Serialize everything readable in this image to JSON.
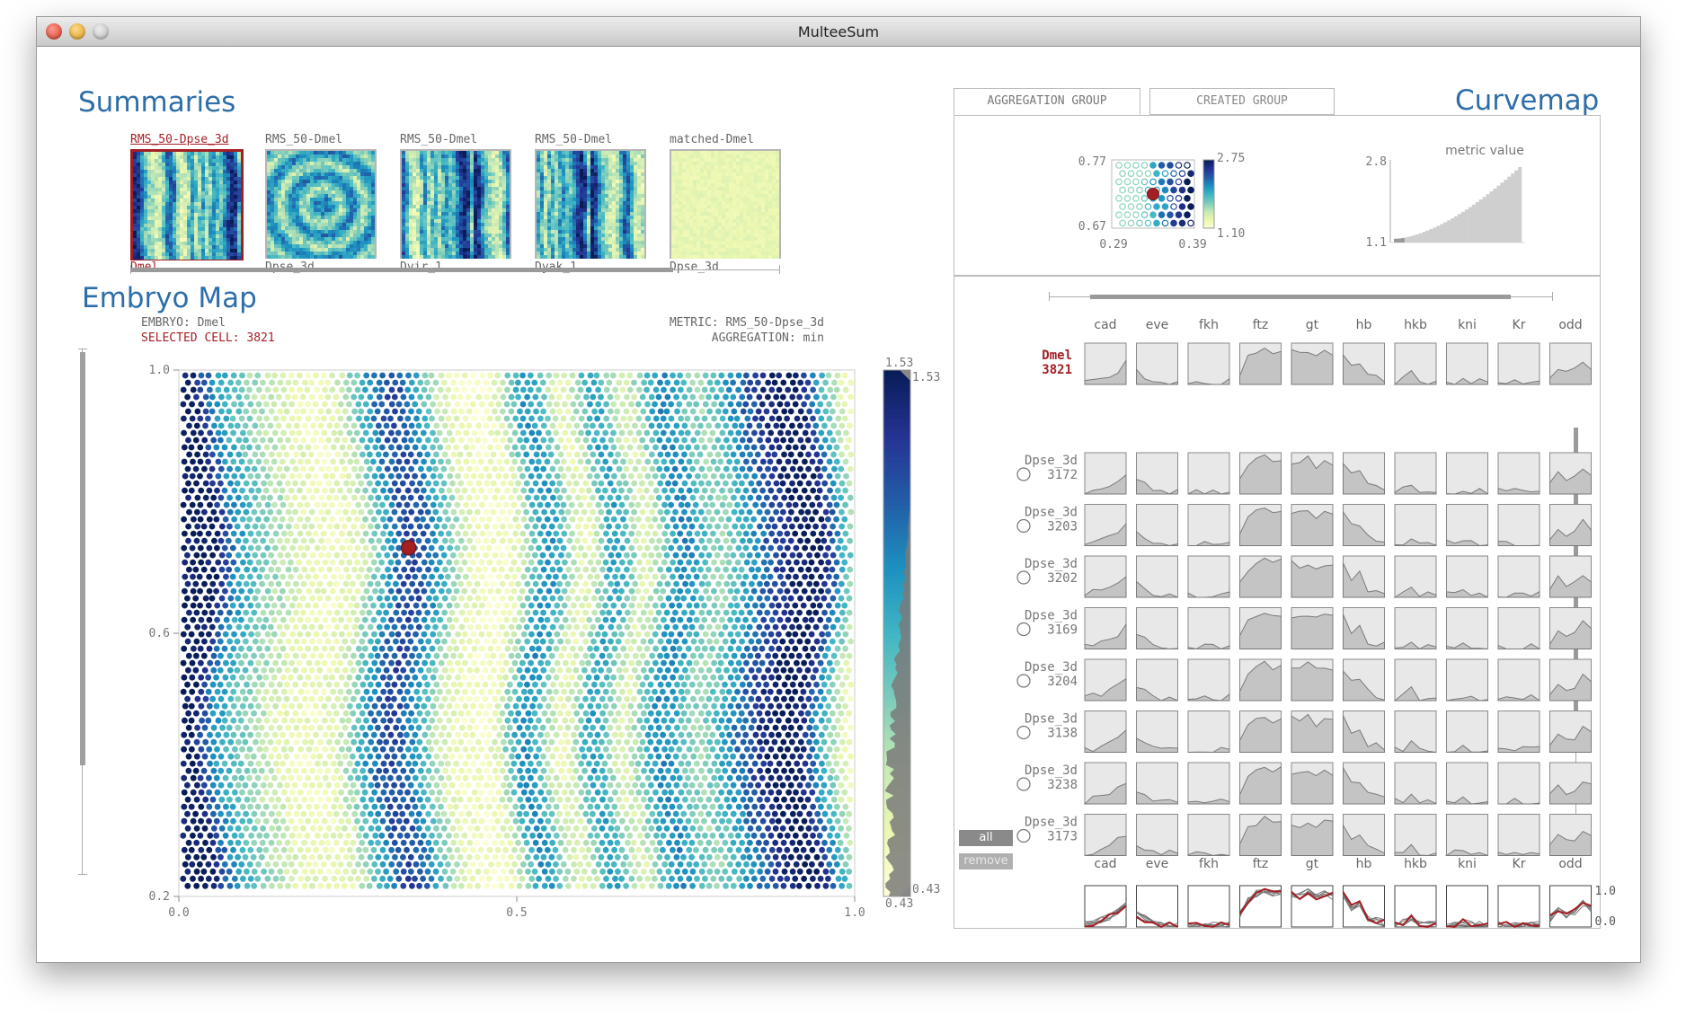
{
  "window": {
    "title": "MulteeSum"
  },
  "summaries": {
    "heading": "Summaries",
    "thumbs": [
      {
        "top_label": "RMS_50-Dpse_3d",
        "bottom_label": "Dmel",
        "selected": true
      },
      {
        "top_label": "RMS_50-Dmel",
        "bottom_label": "Dpse_3d",
        "selected": false
      },
      {
        "top_label": "RMS_50-Dmel",
        "bottom_label": "Dvir_1",
        "selected": false
      },
      {
        "top_label": "RMS_50-Dmel",
        "bottom_label": "Dyak_1",
        "selected": false
      },
      {
        "top_label": "matched-Dmel",
        "bottom_label": "Dpse_3d",
        "selected": false
      }
    ]
  },
  "embryo_map": {
    "heading": "Embryo Map",
    "embryo": "EMBRYO: Dmel",
    "selected_cell": "SELECTED CELL: 3821",
    "metric": "METRIC: RMS_50-Dpse_3d",
    "aggregation": "AGGREGATION: min",
    "y_ticks": [
      "1.0",
      "0.6",
      "0.2"
    ],
    "x_ticks": [
      "0.0",
      "0.5",
      "1.0"
    ],
    "colorbar_max": "1.53",
    "colorbar_max_marker": "1.53",
    "colorbar_min": "0.43",
    "colorbar_min_marker": "0.43",
    "selected_point": {
      "x": 0.34,
      "y": 0.73
    }
  },
  "curvemap": {
    "heading": "Curvemap",
    "tabs": [
      "AGGREGATION GROUP",
      "CREATED GROUP"
    ],
    "active_tab": 0,
    "scatter": {
      "y_max": "0.77",
      "y_min": "0.67",
      "x_min": "0.29",
      "x_max": "0.39",
      "color_max": "2.75",
      "color_min": "1.10"
    },
    "histogram": {
      "title": "metric value",
      "y_max": "2.8",
      "y_min": "1.1"
    },
    "genes": [
      "cad",
      "eve",
      "fkh",
      "ftz",
      "gt",
      "hb",
      "hkb",
      "kni",
      "Kr",
      "odd"
    ],
    "reference_row": {
      "species": "Dmel",
      "cell": "3821"
    },
    "rows": [
      {
        "species": "Dpse_3d",
        "cell": "3172"
      },
      {
        "species": "Dpse_3d",
        "cell": "3203"
      },
      {
        "species": "Dpse_3d",
        "cell": "3202"
      },
      {
        "species": "Dpse_3d",
        "cell": "3169"
      },
      {
        "species": "Dpse_3d",
        "cell": "3204"
      },
      {
        "species": "Dpse_3d",
        "cell": "3138"
      },
      {
        "species": "Dpse_3d",
        "cell": "3238"
      },
      {
        "species": "Dpse_3d",
        "cell": "3173"
      }
    ],
    "buttons": {
      "all": "all",
      "remove": "remove"
    },
    "overlay_axis": {
      "max": "1.0",
      "min": "0.0"
    }
  },
  "colors": {
    "accent": "#2e6ea8",
    "highlight": "#a41f24",
    "grid_fill": "#e8e8e8",
    "curve_fill": "#c4c4c4"
  }
}
